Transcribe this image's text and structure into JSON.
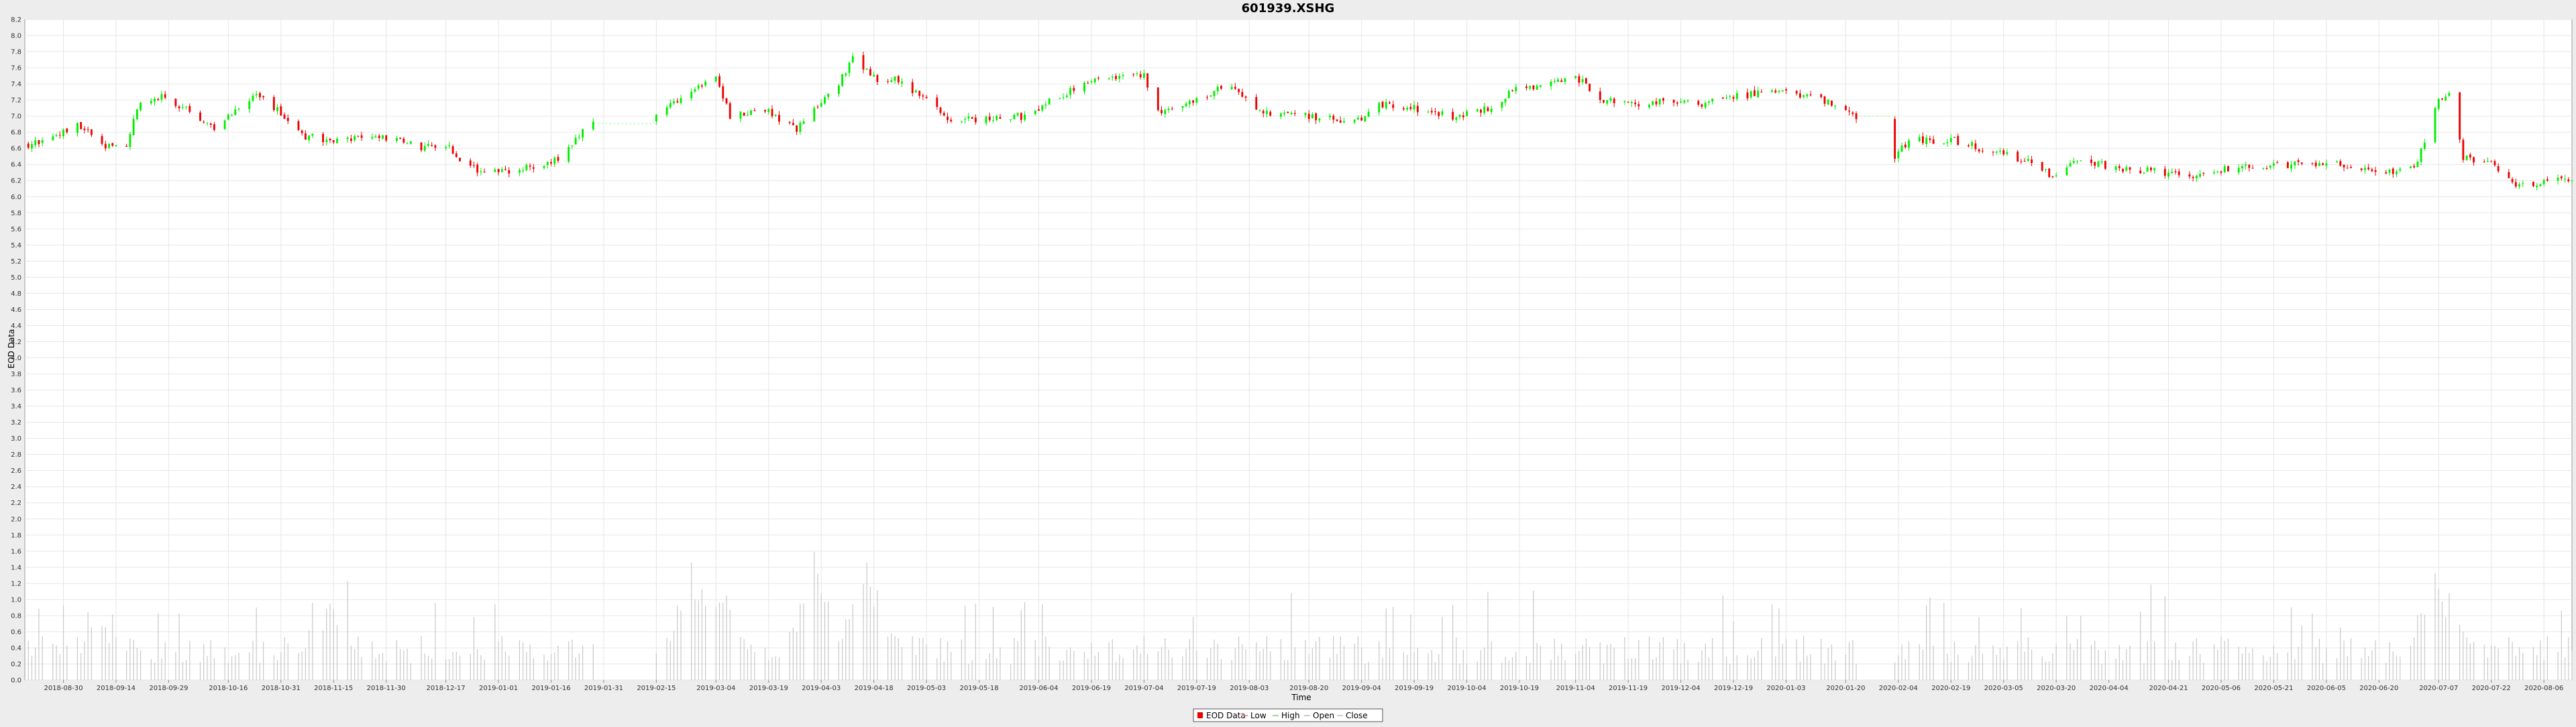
{
  "chart_data": {
    "type": "candlestick",
    "title": "601939.XSHG",
    "xlabel": "Time",
    "ylabel": "EOD Data",
    "ylim": [
      0.0,
      8.2
    ],
    "y_ticks": [
      0.0,
      0.2,
      0.4,
      0.6,
      0.8,
      1.0,
      1.2,
      1.4,
      1.6,
      1.8,
      2.0,
      2.2,
      2.4,
      2.6,
      2.8,
      3.0,
      3.2,
      3.4,
      3.6,
      3.8,
      4.0,
      4.2,
      4.4,
      4.6,
      4.8,
      5.0,
      5.2,
      5.4,
      5.6,
      5.8,
      6.0,
      6.2,
      6.4,
      6.6,
      6.8,
      7.0,
      7.2,
      7.4,
      7.6,
      7.8,
      8.0,
      8.2
    ],
    "y_tick_labels": [
      "0.0",
      "0.2",
      "0.4",
      "0.6",
      "0.8",
      "1.0",
      "1.2",
      "1.4",
      "1.6",
      "1.8",
      "2.0",
      "2.2",
      "2.4",
      "2.6",
      "2.8",
      "3.0",
      "3.2",
      "3.4",
      "3.6",
      "3.8",
      "4.0",
      "4.2",
      "4.4",
      "4.6",
      "4.8",
      "5.0",
      "5.2",
      "5.4",
      "5.6",
      "5.8",
      "6.0",
      "6.2",
      "6.4",
      "6.6",
      "6.8",
      "7.0",
      "7.2",
      "7.4",
      "7.6",
      "7.8",
      "8.0",
      "8.2"
    ],
    "x_range": [
      "2018-08-19",
      "2020-08-14"
    ],
    "x_tick_labels": [
      "2018-08-30",
      "2018-09-14",
      "2018-09-29",
      "2018-10-16",
      "2018-10-31",
      "2018-11-15",
      "2018-11-30",
      "2018-12-17",
      "2019-01-01",
      "2019-01-16",
      "2019-01-31",
      "2019-02-15",
      "2019-03-04",
      "2019-03-19",
      "2019-04-03",
      "2019-04-18",
      "2019-05-03",
      "2019-05-18",
      "2019-06-04",
      "2019-06-19",
      "2019-07-04",
      "2019-07-19",
      "2019-08-03",
      "2019-08-20",
      "2019-09-04",
      "2019-09-19",
      "2019-10-04",
      "2019-10-19",
      "2019-11-04",
      "2019-11-19",
      "2019-12-04",
      "2019-12-19",
      "2020-01-03",
      "2020-01-20",
      "2020-02-04",
      "2020-02-19",
      "2020-03-05",
      "2020-03-20",
      "2020-04-04",
      "2020-04-21",
      "2020-05-06",
      "2020-05-21",
      "2020-06-05",
      "2020-06-20",
      "2020-07-07",
      "2020-07-22",
      "2020-08-06"
    ],
    "grid": true,
    "legend_position": "bottom-center",
    "legend": [
      "EOD Data",
      "Low",
      "High",
      "Open",
      "Close"
    ],
    "colors": {
      "up": "#00ee00",
      "down": "#ee0000",
      "volume": "#c8c8c8",
      "grid": "#e6e6e6",
      "plot_background": "#ffffff"
    },
    "close_anchors": [
      [
        "2018-08-20",
        6.65
      ],
      [
        "2018-08-27",
        6.72
      ],
      [
        "2018-09-03",
        6.92
      ],
      [
        "2018-09-10",
        6.62
      ],
      [
        "2018-09-17",
        6.65
      ],
      [
        "2018-09-21",
        7.2
      ],
      [
        "2018-09-28",
        7.25
      ],
      [
        "2018-10-08",
        6.95
      ],
      [
        "2018-10-12",
        6.85
      ],
      [
        "2018-10-19",
        7.1
      ],
      [
        "2018-10-24",
        7.25
      ],
      [
        "2018-10-31",
        7.05
      ],
      [
        "2018-11-07",
        6.75
      ],
      [
        "2018-11-15",
        6.7
      ],
      [
        "2018-11-30",
        6.72
      ],
      [
        "2018-12-10",
        6.62
      ],
      [
        "2018-12-17",
        6.65
      ],
      [
        "2018-12-24",
        6.35
      ],
      [
        "2019-01-02",
        6.32
      ],
      [
        "2019-01-16",
        6.4
      ],
      [
        "2019-01-25",
        6.8
      ],
      [
        "2019-02-01",
        7.05
      ],
      [
        "2019-02-15",
        7.05
      ],
      [
        "2019-02-25",
        7.3
      ],
      [
        "2019-03-04",
        7.45
      ],
      [
        "2019-03-08",
        7.0
      ],
      [
        "2019-03-19",
        7.05
      ],
      [
        "2019-03-27",
        6.85
      ],
      [
        "2019-04-08",
        7.4
      ],
      [
        "2019-04-12",
        7.7
      ],
      [
        "2019-04-19",
        7.45
      ],
      [
        "2019-04-24",
        7.45
      ],
      [
        "2019-05-06",
        7.1
      ],
      [
        "2019-05-10",
        6.95
      ],
      [
        "2019-05-31",
        7.0
      ],
      [
        "2019-06-10",
        7.25
      ],
      [
        "2019-06-20",
        7.5
      ],
      [
        "2019-07-04",
        7.5
      ],
      [
        "2019-07-08",
        7.05
      ],
      [
        "2019-07-19",
        7.2
      ],
      [
        "2019-07-29",
        7.4
      ],
      [
        "2019-08-06",
        7.05
      ],
      [
        "2019-08-20",
        7.0
      ],
      [
        "2019-09-02",
        6.92
      ],
      [
        "2019-09-10",
        7.15
      ],
      [
        "2019-09-19",
        7.1
      ],
      [
        "2019-09-30",
        7.0
      ],
      [
        "2019-10-11",
        7.1
      ],
      [
        "2019-10-18",
        7.35
      ],
      [
        "2019-10-28",
        7.4
      ],
      [
        "2019-11-04",
        7.5
      ],
      [
        "2019-11-11",
        7.2
      ],
      [
        "2019-11-19",
        7.15
      ],
      [
        "2019-11-29",
        7.18
      ],
      [
        "2019-12-09",
        7.15
      ],
      [
        "2019-12-19",
        7.25
      ],
      [
        "2020-01-03",
        7.3
      ],
      [
        "2020-01-13",
        7.2
      ],
      [
        "2020-01-23",
        7.0
      ],
      [
        "2020-02-03",
        6.5
      ],
      [
        "2020-02-07",
        6.7
      ],
      [
        "2020-02-20",
        6.7
      ],
      [
        "2020-03-02",
        6.55
      ],
      [
        "2020-03-12",
        6.45
      ],
      [
        "2020-03-19",
        6.25
      ],
      [
        "2020-03-26",
        6.45
      ],
      [
        "2020-04-08",
        6.35
      ],
      [
        "2020-04-20",
        6.3
      ],
      [
        "2020-04-27",
        6.25
      ],
      [
        "2020-05-08",
        6.35
      ],
      [
        "2020-05-21",
        6.38
      ],
      [
        "2020-06-05",
        6.42
      ],
      [
        "2020-06-19",
        6.3
      ],
      [
        "2020-06-30",
        6.35
      ],
      [
        "2020-07-03",
        6.7
      ],
      [
        "2020-07-07",
        7.2
      ],
      [
        "2020-07-10",
        7.25
      ],
      [
        "2020-07-14",
        6.5
      ],
      [
        "2020-07-22",
        6.4
      ],
      [
        "2020-07-29",
        6.12
      ],
      [
        "2020-08-07",
        6.2
      ],
      [
        "2020-08-14",
        6.22
      ]
    ],
    "gaps": [
      [
        "2019-01-28",
        "2019-02-15"
      ],
      [
        "2020-01-23",
        "2020-02-03"
      ]
    ],
    "volume_range": [
      0.2,
      1.7
    ],
    "volume_peaks": [
      [
        "2019-02-25",
        1.6
      ],
      [
        "2019-03-04",
        1.4
      ],
      [
        "2019-04-01",
        1.6
      ],
      [
        "2019-04-16",
        1.5
      ],
      [
        "2020-07-06",
        1.7
      ],
      [
        "2020-07-10",
        1.2
      ],
      [
        "2018-09-10",
        0.9
      ],
      [
        "2018-11-13",
        1.1
      ]
    ]
  }
}
